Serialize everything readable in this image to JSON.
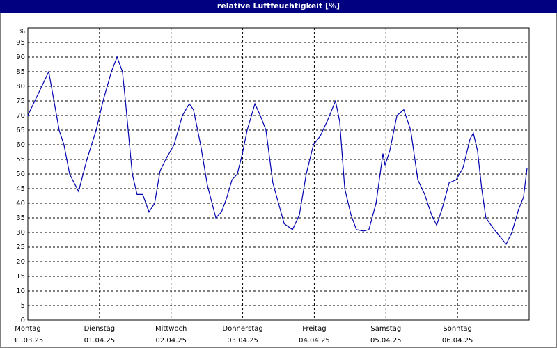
{
  "chart_data": {
    "type": "line",
    "title": "relative Luftfeuchtigkeit [%]",
    "ylim": [
      0,
      100
    ],
    "yticks": [
      0,
      5,
      10,
      15,
      20,
      25,
      30,
      35,
      40,
      45,
      50,
      55,
      60,
      65,
      70,
      75,
      80,
      85,
      90,
      95,
      {
        "value": 100,
        "label": "%"
      }
    ],
    "xlim": [
      0,
      168
    ],
    "xticks": [
      {
        "value": 0,
        "label": "Montag"
      },
      {
        "value": 24,
        "label": "Dienstag"
      },
      {
        "value": 48,
        "label": "Mittwoch"
      },
      {
        "value": 72,
        "label": "Donnerstag"
      },
      {
        "value": 96,
        "label": "Freitag"
      },
      {
        "value": 120,
        "label": "Samstag"
      },
      {
        "value": 144,
        "label": "Sonntag"
      }
    ],
    "xtick_dates": [
      "31.03.25",
      "01.04.25",
      "02.04.25",
      "03.04.25",
      "04.04.25",
      "05.04.25",
      "06.04.25"
    ],
    "grid": true,
    "x": [
      0,
      7,
      10.5,
      12.1,
      14,
      17,
      19.8,
      22.9,
      25.2,
      28,
      29.9,
      31.7,
      32.7,
      35,
      36.6,
      38.5,
      40.6,
      42.5,
      44.3,
      46.2,
      49,
      51.8,
      54.1,
      55.5,
      57.9,
      60.2,
      63,
      64.9,
      66.7,
      68.4,
      70.2,
      71.9,
      73.5,
      76.1,
      77.9,
      79.8,
      82.1,
      84,
      85.9,
      88.7,
      91,
      93.3,
      95.7,
      98,
      100.3,
      103.1,
      104.5,
      106.2,
      108.3,
      110.1,
      112.5,
      114.3,
      116.7,
      119,
      119.7,
      121.3,
      123.7,
      126,
      128.3,
      130.7,
      133,
      135.3,
      137,
      138.8,
      141.2,
      143.5,
      145.8,
      148.2,
      149.3,
      150.7,
      152.1,
      153.5,
      156.3,
      158.7,
      160.3,
      162.2,
      164.5,
      166.1,
      167.3
    ],
    "series": [
      {
        "color": "#0000b0",
        "values": [
          70,
          85,
          65,
          60,
          50,
          44,
          55,
          65,
          75,
          85,
          90,
          85,
          75,
          50,
          43,
          43,
          37,
          40,
          51,
          55,
          60,
          70,
          74,
          72,
          60,
          46,
          35,
          37,
          42,
          48,
          50,
          57,
          65,
          74,
          70,
          65,
          47,
          40,
          33,
          31,
          36,
          50,
          60,
          63,
          68,
          75,
          68,
          45,
          36,
          31,
          30.5,
          31,
          40,
          57,
          53,
          58,
          70,
          72,
          65,
          48,
          43,
          36,
          32.5,
          38,
          47,
          48,
          52,
          62,
          64,
          58,
          45,
          35,
          31,
          28,
          26,
          30,
          38,
          42,
          52
        ]
      }
    ]
  }
}
